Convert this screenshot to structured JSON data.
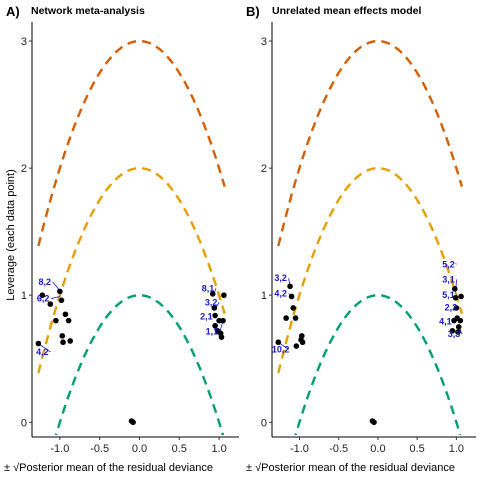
{
  "chart_data": [
    {
      "panel": "A)",
      "title": "Network meta-analysis",
      "type": "scatter",
      "xlabel": "± √Posterior mean of the residual deviance",
      "ylabel": "Leverage (each data point)",
      "xlim": [
        -1.35,
        1.25
      ],
      "ylim": [
        -0.1,
        3.15
      ],
      "x_ticks": [
        -1.0,
        -0.5,
        0.0,
        0.5,
        1.0
      ],
      "x_tick_labels": [
        "-1.0",
        "-0.5",
        "0.0",
        "0.5",
        "1.0"
      ],
      "y_ticks": [
        0,
        1,
        2,
        3
      ],
      "y_tick_labels": [
        "0",
        "1",
        "2",
        "3"
      ],
      "curves": [
        {
          "c": 3,
          "color": "#d55e00",
          "x_range": [
            -1.27,
            1.07
          ]
        },
        {
          "c": 2,
          "color": "#e69f00",
          "x_range": [
            -1.27,
            1.07
          ]
        },
        {
          "c": 1,
          "color": "#009e73",
          "x_range": [
            -1.27,
            1.07
          ]
        }
      ],
      "points": [
        {
          "x": -1.27,
          "y": 0.62
        },
        {
          "x": -1.22,
          "y": 1.0
        },
        {
          "x": -1.12,
          "y": 0.93
        },
        {
          "x": -1.05,
          "y": 0.8
        },
        {
          "x": -1.0,
          "y": 1.03
        },
        {
          "x": -0.98,
          "y": 0.96
        },
        {
          "x": -0.97,
          "y": 0.68
        },
        {
          "x": -0.96,
          "y": 0.63
        },
        {
          "x": -0.93,
          "y": 0.85
        },
        {
          "x": -0.89,
          "y": 0.8
        },
        {
          "x": -0.87,
          "y": 0.64
        },
        {
          "x": -0.1,
          "y": 0.01
        },
        {
          "x": -0.08,
          "y": 0.0
        },
        {
          "x": 0.92,
          "y": 1.01
        },
        {
          "x": 0.94,
          "y": 0.9
        },
        {
          "x": 0.95,
          "y": 0.84
        },
        {
          "x": 0.95,
          "y": 0.76
        },
        {
          "x": 0.98,
          "y": 0.72
        },
        {
          "x": 1.0,
          "y": 0.8
        },
        {
          "x": 1.02,
          "y": 0.7
        },
        {
          "x": 1.03,
          "y": 0.67
        },
        {
          "x": 1.05,
          "y": 0.8
        },
        {
          "x": 1.06,
          "y": 1.0
        }
      ],
      "labels": [
        {
          "text": "8,2",
          "x": -1.19,
          "y": 1.08,
          "ax": -0.98,
          "ay": 1.02
        },
        {
          "text": "6,2",
          "x": -1.21,
          "y": 0.95,
          "ax": -1.0,
          "ay": 0.99
        },
        {
          "text": "4,2",
          "x": -1.22,
          "y": 0.53,
          "ax": -1.27,
          "ay": 0.62
        },
        {
          "text": "8,1",
          "x": 0.86,
          "y": 1.03,
          "ax": 0.93,
          "ay": 1.0
        },
        {
          "text": "3,2",
          "x": 0.9,
          "y": 0.92,
          "ax": 0.95,
          "ay": 0.89
        },
        {
          "text": "2,1",
          "x": 0.84,
          "y": 0.81,
          "ax": 0.95,
          "ay": 0.83
        },
        {
          "text": "1,1",
          "x": 0.91,
          "y": 0.69,
          "ax": 1.04,
          "ay": 0.78
        }
      ]
    },
    {
      "panel": "B)",
      "title": "Unrelated mean effects model",
      "type": "scatter",
      "xlabel": "± √Posterior mean of the residual deviance",
      "ylabel": "",
      "xlim": [
        -1.35,
        1.25
      ],
      "ylim": [
        -0.1,
        3.15
      ],
      "x_ticks": [
        -1.0,
        -0.5,
        0.0,
        0.5,
        1.0
      ],
      "x_tick_labels": [
        "-1.0",
        "-0.5",
        "0.0",
        "0.5",
        "1.0"
      ],
      "y_ticks": [
        0,
        1,
        2,
        3
      ],
      "y_tick_labels": [
        "0",
        "1",
        "2",
        "3"
      ],
      "curves": [
        {
          "c": 3,
          "color": "#d55e00",
          "x_range": [
            -1.27,
            1.07
          ]
        },
        {
          "c": 2,
          "color": "#e69f00",
          "x_range": [
            -1.27,
            1.07
          ]
        },
        {
          "c": 1,
          "color": "#009e73",
          "x_range": [
            -1.27,
            1.07
          ]
        }
      ],
      "points": [
        {
          "x": -1.27,
          "y": 0.63
        },
        {
          "x": -1.17,
          "y": 0.82
        },
        {
          "x": -1.12,
          "y": 1.07
        },
        {
          "x": -1.1,
          "y": 0.99
        },
        {
          "x": -1.08,
          "y": 0.9
        },
        {
          "x": -1.05,
          "y": 0.82
        },
        {
          "x": -1.04,
          "y": 0.6
        },
        {
          "x": -0.98,
          "y": 0.65
        },
        {
          "x": -0.97,
          "y": 0.68
        },
        {
          "x": -0.96,
          "y": 0.63
        },
        {
          "x": -0.07,
          "y": 0.01
        },
        {
          "x": -0.05,
          "y": 0.0
        },
        {
          "x": 0.95,
          "y": 0.72
        },
        {
          "x": 0.97,
          "y": 0.8
        },
        {
          "x": 0.98,
          "y": 1.05
        },
        {
          "x": 0.99,
          "y": 0.98
        },
        {
          "x": 1.0,
          "y": 0.9
        },
        {
          "x": 1.01,
          "y": 0.82
        },
        {
          "x": 1.02,
          "y": 0.71
        },
        {
          "x": 1.03,
          "y": 0.75
        },
        {
          "x": 1.05,
          "y": 0.8
        },
        {
          "x": 1.06,
          "y": 0.99
        }
      ],
      "labels": [
        {
          "text": "3,2",
          "x": -1.24,
          "y": 1.11,
          "ax": -1.12,
          "ay": 1.07
        },
        {
          "text": "4,2",
          "x": -1.24,
          "y": 0.99,
          "ax": -1.1,
          "ay": 0.99
        },
        {
          "text": "10,2",
          "x": -1.24,
          "y": 0.55,
          "ax": -1.27,
          "ay": 0.63
        },
        {
          "text": "5,2",
          "x": 0.9,
          "y": 1.22,
          "ax": 0.99,
          "ay": 1.25
        },
        {
          "text": "3,1",
          "x": 0.9,
          "y": 1.1,
          "ax": 0.99,
          "ay": 1.02
        },
        {
          "text": "5,1",
          "x": 0.9,
          "y": 0.98,
          "ax": 0.99,
          "ay": 0.98
        },
        {
          "text": "2,2",
          "x": 0.93,
          "y": 0.88,
          "ax": 1.0,
          "ay": 0.88
        },
        {
          "text": "4,1",
          "x": 0.86,
          "y": 0.77,
          "ax": 0.97,
          "ay": 0.8
        },
        {
          "text": "3,3",
          "x": 0.97,
          "y": 0.67,
          "ax": 1.04,
          "ay": 0.74
        }
      ]
    }
  ]
}
